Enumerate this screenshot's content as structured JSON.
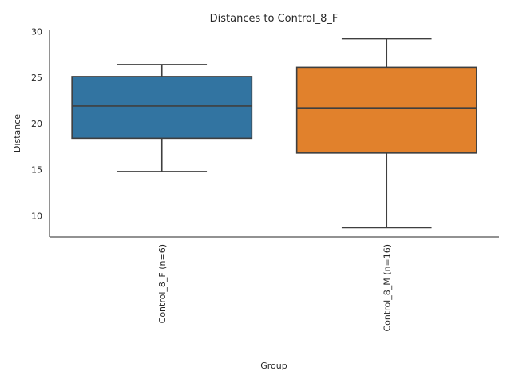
{
  "chart_data": {
    "type": "box",
    "title": "Distances to Control_8_F",
    "xlabel": "Group",
    "ylabel": "Distance",
    "ylim": [
      7.7,
      30.2
    ],
    "yticks": [
      10,
      15,
      20,
      25,
      30
    ],
    "grid": false,
    "categories": [
      "Control_8_F (n=6)",
      "Control_8_M (n=16)"
    ],
    "boxes": [
      {
        "category": "Control_8_F (n=6)",
        "whisker_low": 14.8,
        "q1": 18.4,
        "median": 21.9,
        "q3": 25.1,
        "whisker_high": 26.4,
        "color": "#3274a1"
      },
      {
        "category": "Control_8_M (n=16)",
        "whisker_low": 8.7,
        "q1": 16.8,
        "median": 21.7,
        "q3": 26.1,
        "whisker_high": 29.2,
        "color": "#e1812c"
      }
    ]
  }
}
